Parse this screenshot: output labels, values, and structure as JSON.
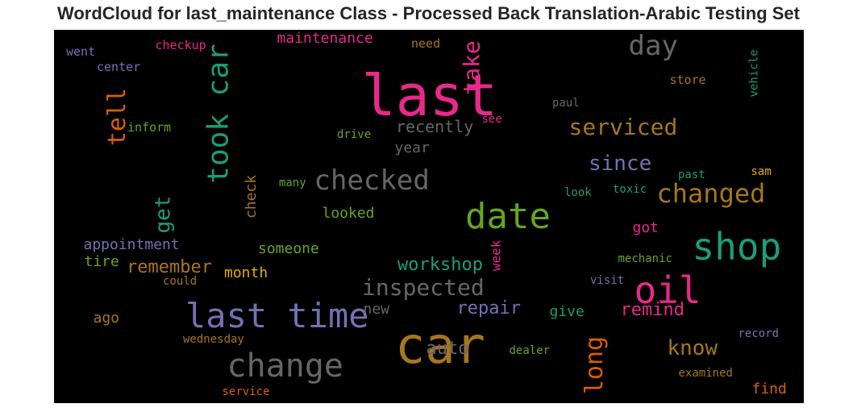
{
  "title": "WordCloud for last_maintenance Class - Processed Back Translation-Arabic Testing Set",
  "palette": {
    "pink": "#e7298a",
    "teal": "#1b9e77",
    "orange": "#d95f02",
    "purple": "#7570b3",
    "green": "#66a61e",
    "gold": "#e6ab02",
    "brown": "#a6761d",
    "gray": "#666666",
    "background": "#000000"
  },
  "words": [
    {
      "text": "last",
      "color": "#e7298a",
      "vertical": false
    },
    {
      "text": "car",
      "color": "#a6761d",
      "vertical": false
    },
    {
      "text": "last time",
      "color": "#7570b3",
      "vertical": false
    },
    {
      "text": "shop",
      "color": "#1b9e77",
      "vertical": false
    },
    {
      "text": "oil",
      "color": "#e7298a",
      "vertical": false
    },
    {
      "text": "date",
      "color": "#66a61e",
      "vertical": false
    },
    {
      "text": "change",
      "color": "#666666",
      "vertical": false
    },
    {
      "text": "took car",
      "color": "#1b9e77",
      "vertical": true
    },
    {
      "text": "checked",
      "color": "#666666",
      "vertical": false
    },
    {
      "text": "day",
      "color": "#666666",
      "vertical": false
    },
    {
      "text": "changed",
      "color": "#a6761d",
      "vertical": false
    },
    {
      "text": "serviced",
      "color": "#a6761d",
      "vertical": false
    },
    {
      "text": "inspected",
      "color": "#666666",
      "vertical": false
    },
    {
      "text": "long",
      "color": "#d95f02",
      "vertical": true
    },
    {
      "text": "tell",
      "color": "#d95f02",
      "vertical": true
    },
    {
      "text": "take",
      "color": "#e7298a",
      "vertical": true
    },
    {
      "text": "since",
      "color": "#7570b3",
      "vertical": false
    },
    {
      "text": "know",
      "color": "#a6761d",
      "vertical": false
    },
    {
      "text": "workshop",
      "color": "#1b9e77",
      "vertical": false
    },
    {
      "text": "get",
      "color": "#1b9e77",
      "vertical": true
    },
    {
      "text": "repair",
      "color": "#7570b3",
      "vertical": false
    },
    {
      "text": "remind",
      "color": "#e7298a",
      "vertical": false
    },
    {
      "text": "remember",
      "color": "#a6761d",
      "vertical": false
    },
    {
      "text": "auto",
      "color": "#666666",
      "vertical": false
    },
    {
      "text": "recently",
      "color": "#666666",
      "vertical": false
    },
    {
      "text": "maintenance",
      "color": "#e7298a",
      "vertical": false
    },
    {
      "text": "appointment",
      "color": "#7570b3",
      "vertical": false
    },
    {
      "text": "month",
      "color": "#e6ab02",
      "vertical": false
    },
    {
      "text": "someone",
      "color": "#66a61e",
      "vertical": false
    },
    {
      "text": "looked",
      "color": "#66a61e",
      "vertical": false
    },
    {
      "text": "check",
      "color": "#a6761d",
      "vertical": true
    },
    {
      "text": "year",
      "color": "#666666",
      "vertical": false
    },
    {
      "text": "give",
      "color": "#1b9e77",
      "vertical": false
    },
    {
      "text": "got",
      "color": "#e7298a",
      "vertical": false
    },
    {
      "text": "tire",
      "color": "#66a61e",
      "vertical": false
    },
    {
      "text": "ago",
      "color": "#a6761d",
      "vertical": false
    },
    {
      "text": "new",
      "color": "#666666",
      "vertical": false
    },
    {
      "text": "find",
      "color": "#d95f02",
      "vertical": false
    },
    {
      "text": "week",
      "color": "#e7298a",
      "vertical": true
    },
    {
      "text": "inform",
      "color": "#66a61e",
      "vertical": false
    },
    {
      "text": "checkup",
      "color": "#e7298a",
      "vertical": false
    },
    {
      "text": "went",
      "color": "#7570b3",
      "vertical": false
    },
    {
      "text": "center",
      "color": "#7570b3",
      "vertical": false
    },
    {
      "text": "need",
      "color": "#a6761d",
      "vertical": false
    },
    {
      "text": "store",
      "color": "#a6761d",
      "vertical": false
    },
    {
      "text": "vehicle",
      "color": "#1b9e77",
      "vertical": true
    },
    {
      "text": "paul",
      "color": "#666666",
      "vertical": false
    },
    {
      "text": "see",
      "color": "#e7298a",
      "vertical": false
    },
    {
      "text": "drive",
      "color": "#66a61e",
      "vertical": false
    },
    {
      "text": "past",
      "color": "#1b9e77",
      "vertical": false
    },
    {
      "text": "sam",
      "color": "#e6ab02",
      "vertical": false
    },
    {
      "text": "many",
      "color": "#66a61e",
      "vertical": false
    },
    {
      "text": "look",
      "color": "#1b9e77",
      "vertical": false
    },
    {
      "text": "toxic",
      "color": "#1b9e77",
      "vertical": false
    },
    {
      "text": "mechanic",
      "color": "#66a61e",
      "vertical": false
    },
    {
      "text": "could",
      "color": "#a6761d",
      "vertical": false
    },
    {
      "text": "visit",
      "color": "#7570b3",
      "vertical": false
    },
    {
      "text": "wednesday",
      "color": "#a6761d",
      "vertical": false
    },
    {
      "text": "record",
      "color": "#7570b3",
      "vertical": false
    },
    {
      "text": "dealer",
      "color": "#66a61e",
      "vertical": false
    },
    {
      "text": "examined",
      "color": "#a6761d",
      "vertical": false
    },
    {
      "text": "service",
      "color": "#d95f02",
      "vertical": false
    }
  ]
}
